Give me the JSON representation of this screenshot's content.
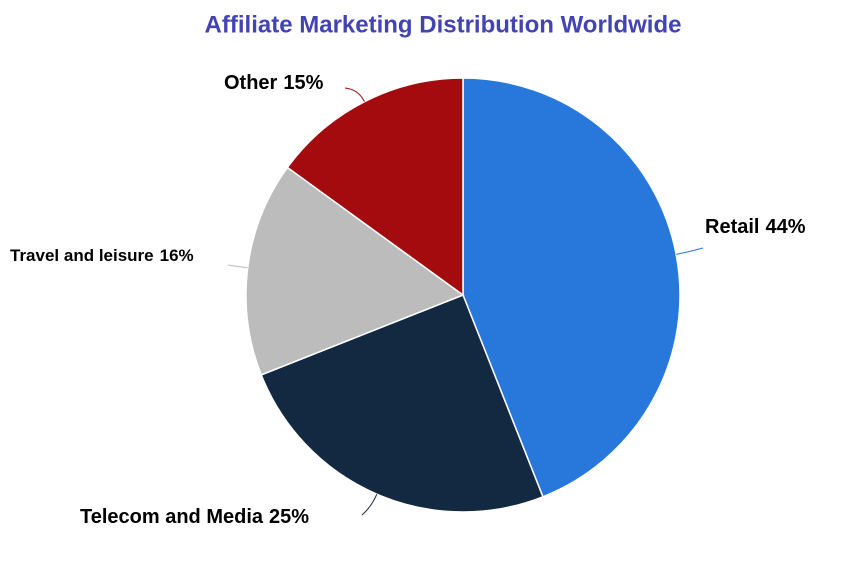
{
  "chart_data": {
    "type": "pie",
    "title": "Affiliate Marketing Distribution Worldwide",
    "categories": [
      "Retail",
      "Telecom and Media",
      "Travel and leisure",
      "Other"
    ],
    "values": [
      44,
      25,
      16,
      15
    ],
    "value_labels": [
      "44%",
      "25%",
      "16%",
      "15%"
    ],
    "colors": [
      "#2878dc",
      "#132841",
      "#bcbcbc",
      "#a30b0e"
    ]
  }
}
